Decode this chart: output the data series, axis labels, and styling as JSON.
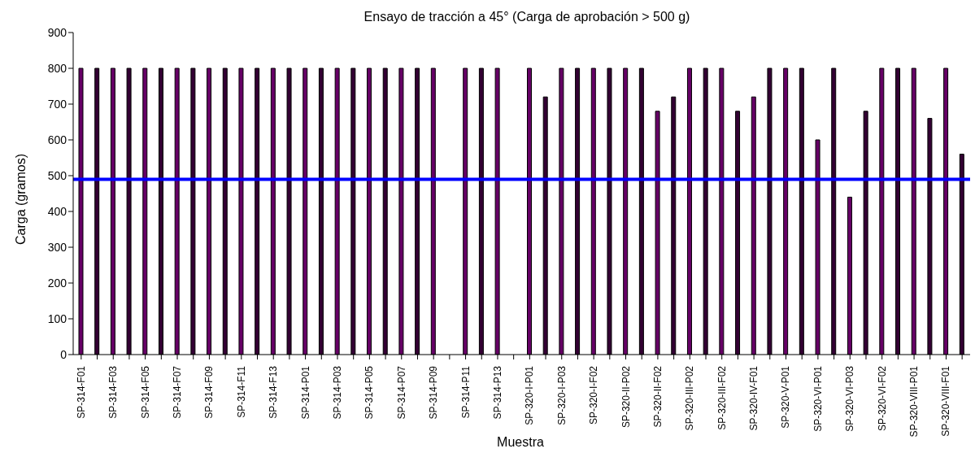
{
  "chart_data": {
    "type": "bar",
    "title": "Ensayo de tracción a 45° (Carga de aprobación > 500  g)",
    "xlabel": "Muestra",
    "ylabel": "Carga (gramos)",
    "categories": [
      "SP-314-F01",
      null,
      "SP-314-F03",
      null,
      "SP-314-F05",
      null,
      "SP-314-F07",
      null,
      "SP-314-F09",
      null,
      "SP-314-F11",
      null,
      "SP-314-F13",
      null,
      "SP-314-P01",
      null,
      "SP-314-P03",
      null,
      "SP-314-P05",
      null,
      "SP-314-P07",
      null,
      "SP-314-P09",
      null,
      "SP-314-P11",
      null,
      "SP-314-P13",
      null,
      "SP-320-I-P01",
      null,
      "SP-320-I-P03",
      null,
      "SP-320-I-F02",
      null,
      "SP-320-II-P02",
      null,
      "SP-320-II-F02",
      null,
      "SP-320-III-P02",
      null,
      "SP-320-III-F02",
      null,
      "SP-320-IV-F01",
      null,
      "SP-320-V-P01",
      null,
      "SP-320-VI-P01",
      null,
      "SP-320-VI-P03",
      null,
      "SP-320-VI-F02",
      null,
      "SP-320-VIII-P01",
      null,
      "SP-320-VIII-F01",
      null
    ],
    "values": [
      800,
      800,
      800,
      800,
      800,
      800,
      800,
      800,
      800,
      800,
      800,
      800,
      800,
      800,
      800,
      800,
      800,
      800,
      800,
      800,
      800,
      800,
      800,
      null,
      800,
      800,
      800,
      null,
      800,
      720,
      800,
      800,
      800,
      800,
      800,
      800,
      680,
      720,
      800,
      800,
      800,
      680,
      720,
      800,
      800,
      800,
      600,
      800,
      440,
      680,
      800,
      800,
      800,
      660,
      800,
      560
    ],
    "colors": [
      "#660066",
      "#330033",
      "#660066",
      "#330033",
      "#660066",
      "#330033",
      "#660066",
      "#330033",
      "#660066",
      "#330033",
      "#660066",
      "#330033",
      "#660066",
      "#330033",
      "#660066",
      "#330033",
      "#660066",
      "#330033",
      "#660066",
      "#330033",
      "#660066",
      "#330033",
      "#660066",
      "#330033",
      "#660066",
      "#330033",
      "#660066",
      "#330033",
      "#660066",
      "#330033",
      "#660066",
      "#330033",
      "#660066",
      "#330033",
      "#660066",
      "#330033",
      "#660066",
      "#330033",
      "#660066",
      "#330033",
      "#660066",
      "#330033",
      "#660066",
      "#330033",
      "#660066",
      "#330033",
      "#660066",
      "#330033",
      "#660066",
      "#330033",
      "#660066",
      "#330033",
      "#660066",
      "#330033",
      "#660066",
      "#330033"
    ],
    "ylim": [
      0,
      900
    ],
    "yticks": [
      0,
      100,
      200,
      300,
      400,
      500,
      600,
      700,
      800,
      900
    ],
    "ref_lines": [
      {
        "axis": "y",
        "value": 490,
        "color": "#0000ff"
      }
    ]
  }
}
